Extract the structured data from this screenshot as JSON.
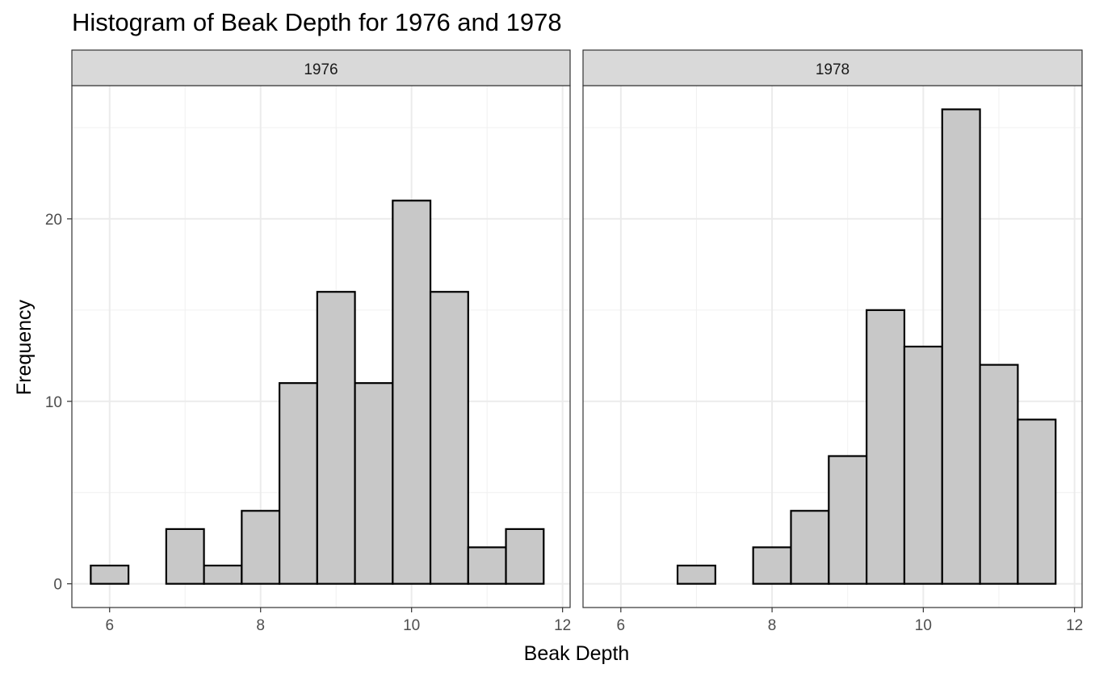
{
  "chart_data": {
    "type": "bar",
    "subtype": "faceted-histogram",
    "title": "Histogram of Beak Depth for 1976 and 1978",
    "xlabel": "Beak Depth",
    "ylabel": "Frequency",
    "xlim": [
      5.5,
      12.1
    ],
    "ylim": [
      -1.3,
      27.3
    ],
    "x_ticks": [
      6,
      8,
      10,
      12
    ],
    "y_ticks": [
      0,
      10,
      20
    ],
    "bin_width": 0.5,
    "bin_centers": [
      6.0,
      6.5,
      7.0,
      7.5,
      8.0,
      8.5,
      9.0,
      9.5,
      10.0,
      10.5,
      11.0,
      11.5
    ],
    "fill_color": "#c8c8c8",
    "outline_color": "#000000",
    "grid": true,
    "theme": "bw",
    "facets": [
      {
        "name": "1976",
        "values": [
          1,
          0,
          3,
          1,
          4,
          11,
          16,
          11,
          21,
          16,
          2,
          3
        ]
      },
      {
        "name": "1978",
        "values": [
          0,
          0,
          1,
          0,
          2,
          4,
          7,
          15,
          13,
          26,
          12,
          9
        ]
      }
    ]
  }
}
